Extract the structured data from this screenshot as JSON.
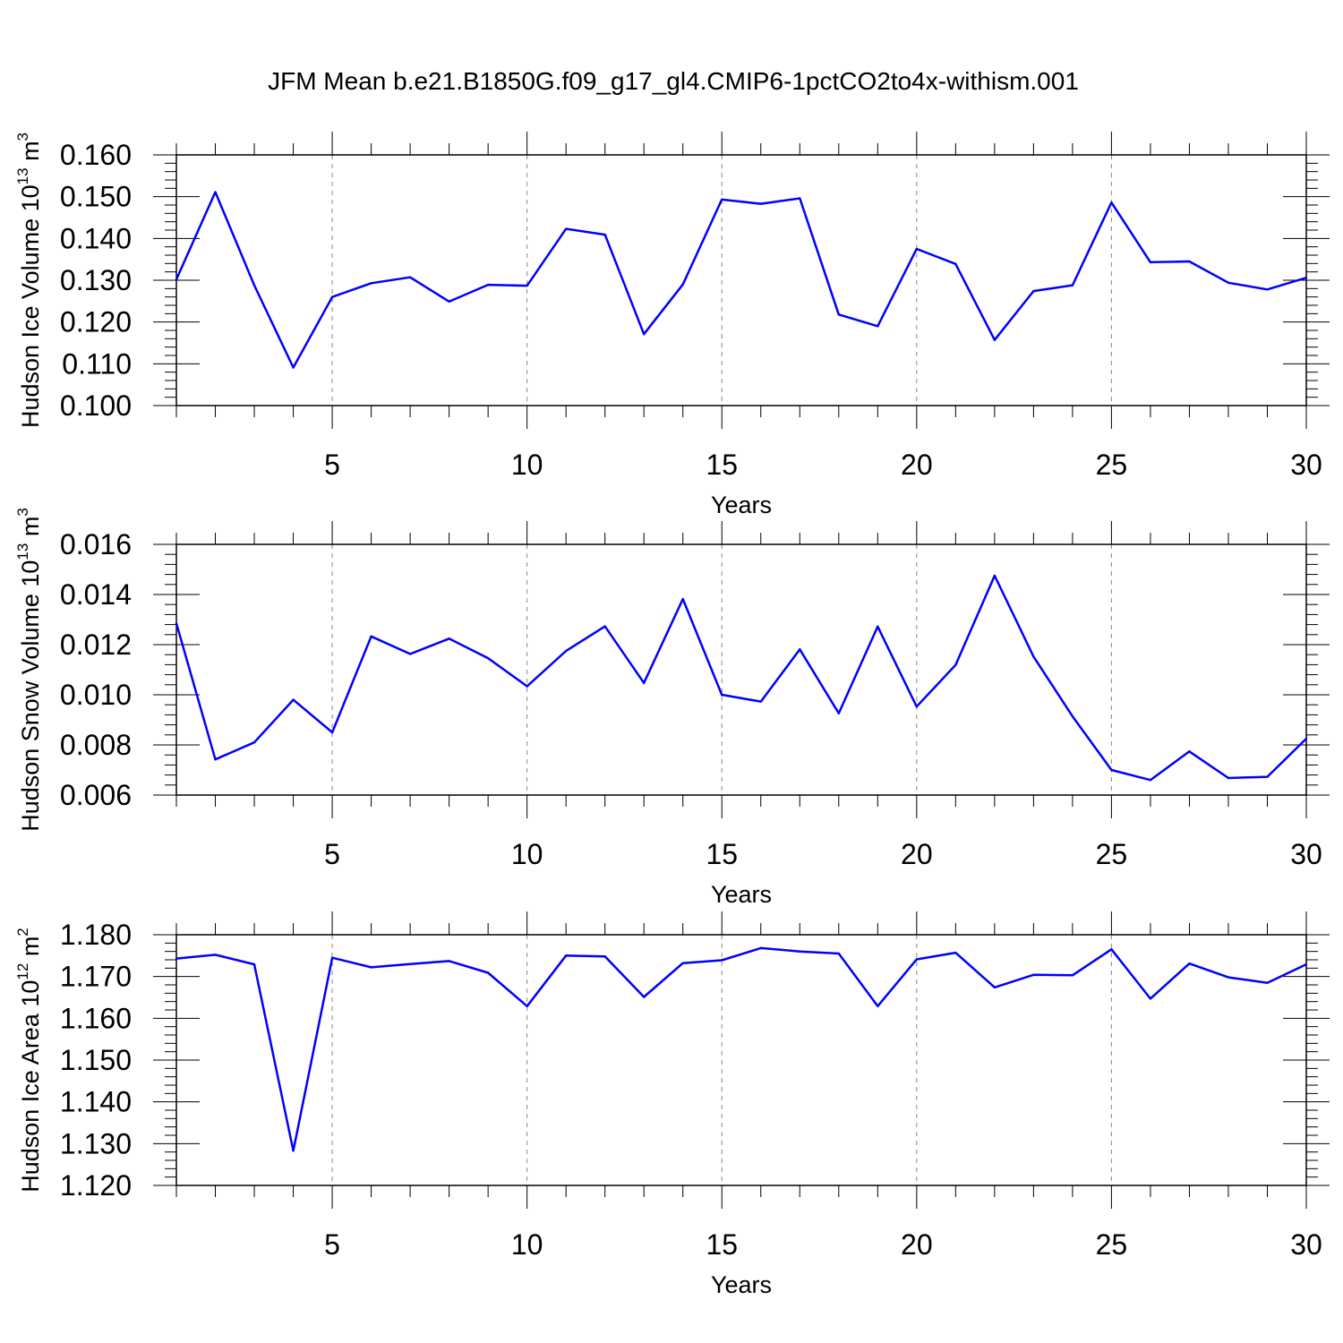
{
  "figure_title": "JFM Mean b.e21.B1850G.f09_g17_gl4.CMIP6-1pctCO2to4x-withism.001",
  "line_color": "#0000ff",
  "chart_data": [
    {
      "type": "line",
      "ylabel": {
        "main": "Hudson Ice Volume 10",
        "exp": "13",
        "unit": " m",
        "unit_exp": "3"
      },
      "xlabel": "Years",
      "xlim": [
        1,
        30
      ],
      "ylim": [
        0.1,
        0.16
      ],
      "x_ticks": [
        5,
        10,
        15,
        20,
        25,
        30
      ],
      "x_tick_labels": [
        "5",
        "10",
        "15",
        "20",
        "25",
        "30"
      ],
      "y_ticks": [
        0.1,
        0.11,
        0.12,
        0.13,
        0.14,
        0.15,
        0.16
      ],
      "y_tick_labels": [
        "0.100",
        "0.110",
        "0.120",
        "0.130",
        "0.140",
        "0.150",
        "0.160"
      ],
      "grid": "vertical dashed at major x ticks",
      "x": [
        1,
        2,
        3,
        4,
        5,
        6,
        7,
        8,
        9,
        10,
        11,
        12,
        13,
        14,
        15,
        16,
        17,
        18,
        19,
        20,
        21,
        22,
        23,
        24,
        25,
        26,
        27,
        28,
        29,
        30
      ],
      "values": [
        0.1302,
        0.1511,
        0.1288,
        0.1091,
        0.126,
        0.1293,
        0.1307,
        0.1249,
        0.1289,
        0.1287,
        0.1423,
        0.1409,
        0.1171,
        0.129,
        0.1493,
        0.1483,
        0.1496,
        0.1218,
        0.119,
        0.1375,
        0.1339,
        0.1157,
        0.1274,
        0.1288,
        0.1486,
        0.1343,
        0.1345,
        0.1294,
        0.1278,
        0.1306
      ]
    },
    {
      "type": "line",
      "ylabel": {
        "main": "Hudson Snow Volume 10",
        "exp": "13",
        "unit": " m",
        "unit_exp": "3"
      },
      "xlabel": "Years",
      "xlim": [
        1,
        30
      ],
      "ylim": [
        0.006,
        0.016
      ],
      "x_ticks": [
        5,
        10,
        15,
        20,
        25,
        30
      ],
      "x_tick_labels": [
        "5",
        "10",
        "15",
        "20",
        "25",
        "30"
      ],
      "y_ticks": [
        0.006,
        0.008,
        0.01,
        0.012,
        0.014,
        0.016
      ],
      "y_tick_labels": [
        "0.006",
        "0.008",
        "0.010",
        "0.012",
        "0.014",
        "0.016"
      ],
      "grid": "vertical dashed at major x ticks",
      "x": [
        1,
        2,
        3,
        4,
        5,
        6,
        7,
        8,
        9,
        10,
        11,
        12,
        13,
        14,
        15,
        16,
        17,
        18,
        19,
        20,
        21,
        22,
        23,
        24,
        25,
        26,
        27,
        28,
        29,
        30
      ],
      "values": [
        0.01285,
        0.00742,
        0.0081,
        0.0098,
        0.0085,
        0.01233,
        0.01163,
        0.01224,
        0.01146,
        0.01034,
        0.01175,
        0.01273,
        0.01047,
        0.01382,
        0.01,
        0.00973,
        0.01181,
        0.00926,
        0.01272,
        0.00953,
        0.01119,
        0.01475,
        0.01152,
        0.00914,
        0.007,
        0.0066,
        0.00774,
        0.00668,
        0.00673,
        0.00825
      ]
    },
    {
      "type": "line",
      "ylabel": {
        "main": "Hudson Ice Area 10",
        "exp": "12",
        "unit": " m",
        "unit_exp": "2"
      },
      "xlabel": "Years",
      "xlim": [
        1,
        30
      ],
      "ylim": [
        1.12,
        1.18
      ],
      "x_ticks": [
        5,
        10,
        15,
        20,
        25,
        30
      ],
      "x_tick_labels": [
        "5",
        "10",
        "15",
        "20",
        "25",
        "30"
      ],
      "y_ticks": [
        1.12,
        1.13,
        1.14,
        1.15,
        1.16,
        1.17,
        1.18
      ],
      "y_tick_labels": [
        "1.120",
        "1.130",
        "1.140",
        "1.150",
        "1.160",
        "1.170",
        "1.180"
      ],
      "grid": "vertical dashed at major x ticks",
      "x": [
        1,
        2,
        3,
        4,
        5,
        6,
        7,
        8,
        9,
        10,
        11,
        12,
        13,
        14,
        15,
        16,
        17,
        18,
        19,
        20,
        21,
        22,
        23,
        24,
        25,
        26,
        27,
        28,
        29,
        30
      ],
      "values": [
        1.1743,
        1.1752,
        1.1729,
        1.1283,
        1.1745,
        1.1722,
        1.173,
        1.1737,
        1.1709,
        1.1629,
        1.175,
        1.1748,
        1.1651,
        1.1732,
        1.1739,
        1.1768,
        1.176,
        1.1755,
        1.1629,
        1.1741,
        1.1757,
        1.1674,
        1.1704,
        1.1703,
        1.1765,
        1.1647,
        1.1731,
        1.1698,
        1.1685,
        1.1729
      ]
    }
  ]
}
